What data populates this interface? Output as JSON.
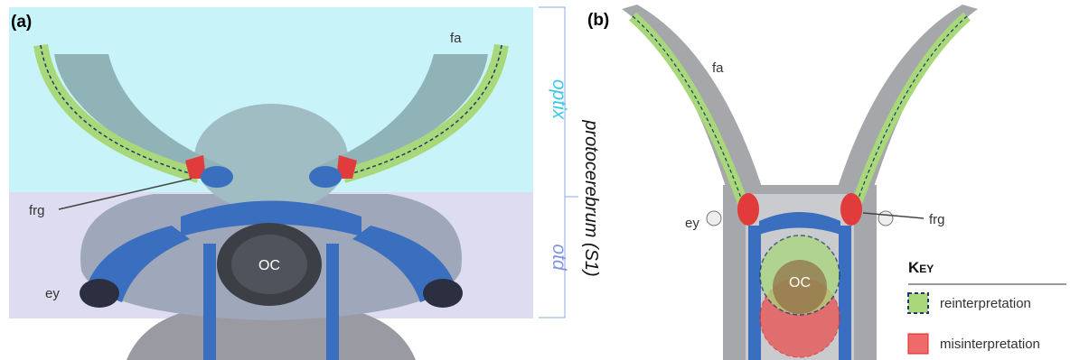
{
  "panel_a": {
    "label": "(a)",
    "fa": "fa",
    "frg": "frg",
    "ey": "ey",
    "oc": "OC",
    "optix": "optix",
    "otd": "otd",
    "bracket": "protocerebrum (S1)"
  },
  "panel_b": {
    "label": "(b)",
    "fa": "fa",
    "ey": "ey",
    "frg": "frg",
    "oc": "OC"
  },
  "key": {
    "title": "Key",
    "items": [
      {
        "label": "reinterpretation"
      },
      {
        "label": "misinterpretation"
      }
    ]
  }
}
